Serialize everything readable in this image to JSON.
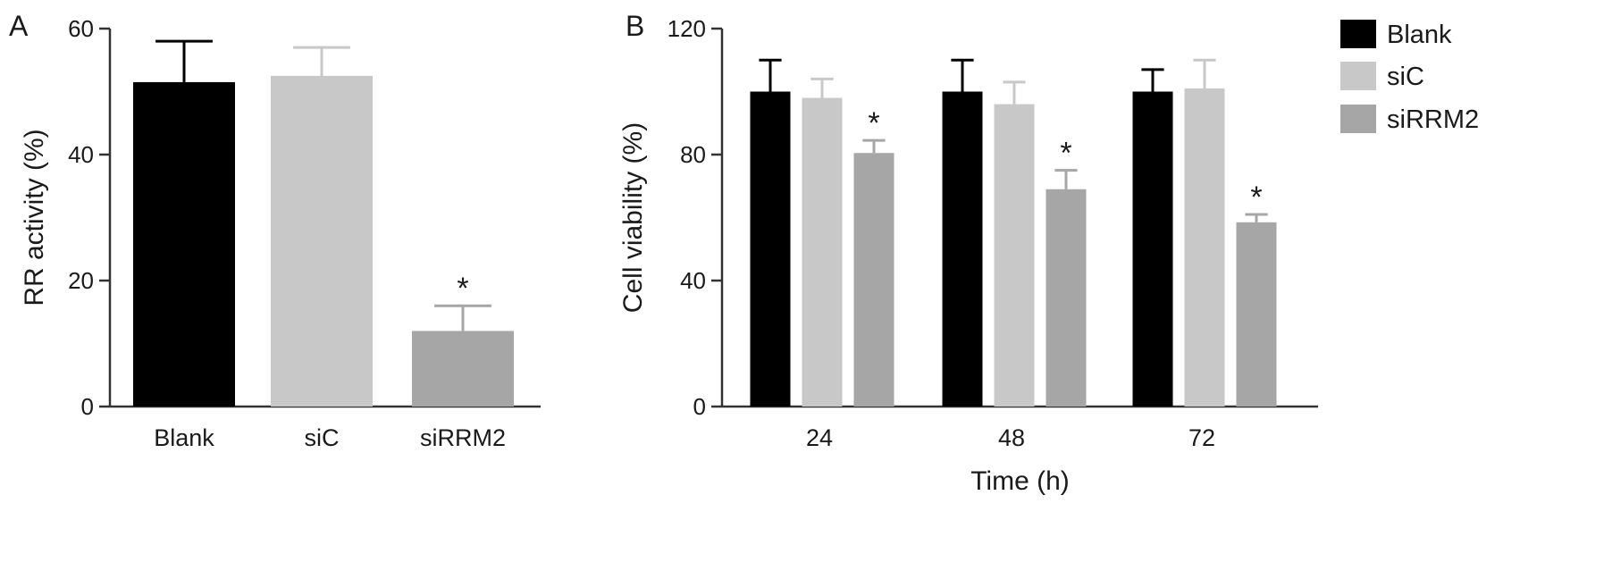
{
  "panels": {
    "a_letter": "A",
    "b_letter": "B"
  },
  "chart_data": [
    {
      "type": "bar",
      "panel": "A",
      "categories": [
        "Blank",
        "siC",
        "siRRM2"
      ],
      "values": [
        51.5,
        52.5,
        12
      ],
      "errors": [
        6.5,
        4.5,
        4
      ],
      "significant": [
        false,
        false,
        true
      ],
      "significance_marker": "*",
      "colors": [
        "#000000",
        "#c8c8c8",
        "#a6a6a6"
      ],
      "xlabel": "",
      "ylabel": "RR activity (%)",
      "ylim": [
        0,
        60
      ],
      "yticks": [
        0,
        20,
        40,
        60
      ],
      "grid": false,
      "legend": "none"
    },
    {
      "type": "bar",
      "panel": "B",
      "categories": [
        "24",
        "48",
        "72"
      ],
      "series": [
        {
          "name": "Blank",
          "values": [
            100,
            100,
            100
          ],
          "errors": [
            10,
            10,
            7
          ],
          "significant": [
            false,
            false,
            false
          ],
          "color": "#000000"
        },
        {
          "name": "siC",
          "values": [
            98,
            96,
            101
          ],
          "errors": [
            6,
            7,
            9
          ],
          "significant": [
            false,
            false,
            false
          ],
          "color": "#c8c8c8"
        },
        {
          "name": "siRRM2",
          "values": [
            80.5,
            69,
            58.5
          ],
          "errors": [
            4,
            6,
            2.5
          ],
          "significant": [
            true,
            true,
            true
          ],
          "color": "#a6a6a6"
        }
      ],
      "significance_marker": "*",
      "xlabel": "Time (h)",
      "ylabel": "Cell viability (%)",
      "ylim": [
        0,
        120
      ],
      "yticks": [
        0,
        40,
        80,
        120
      ],
      "grid": false,
      "legend": "top-right"
    }
  ]
}
